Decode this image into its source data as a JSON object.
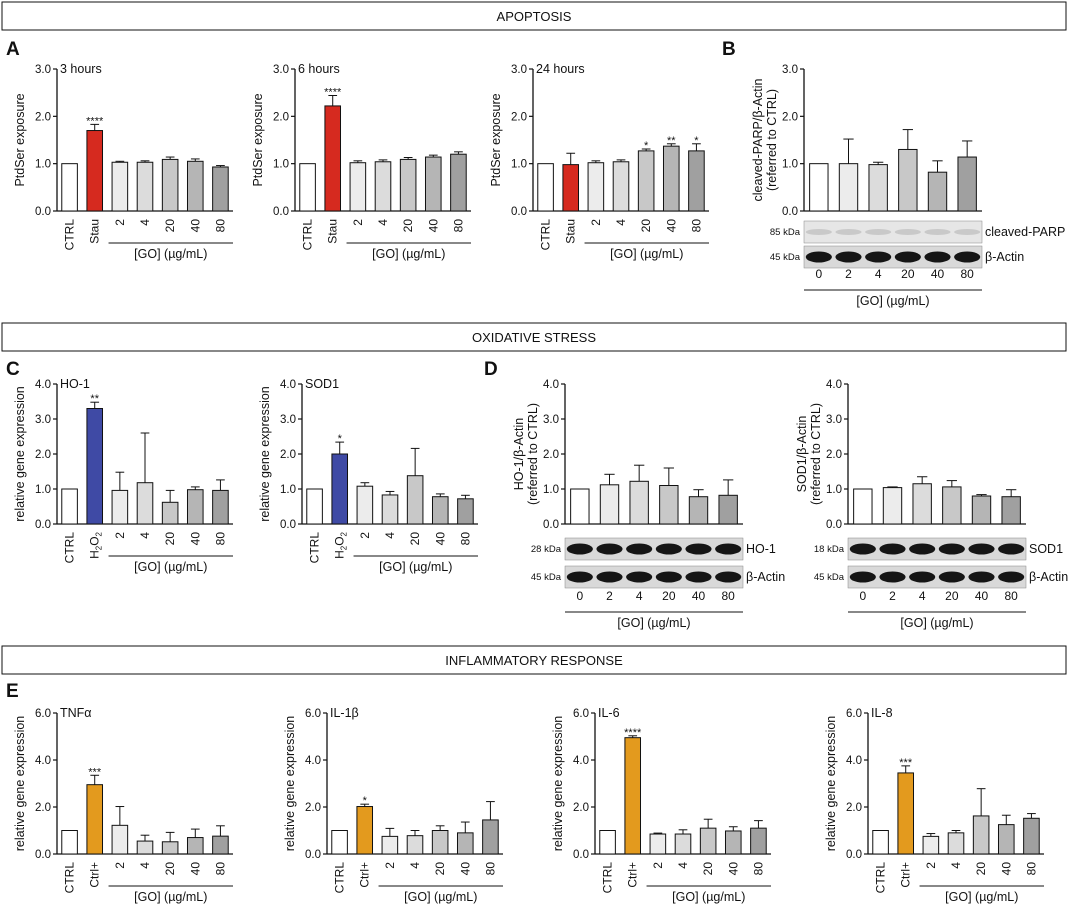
{
  "sections": {
    "apoptosis": "APOPTOSIS",
    "oxidative": "OXIDATIVE STRESS",
    "inflammatory": "INFLAMMATORY RESPONSE"
  },
  "panel_letters": {
    "A": "A",
    "B": "B",
    "C": "C",
    "D": "D",
    "E": "E"
  },
  "group_label": "[GO] (µg/mL)",
  "colors": {
    "red": "#d62a1f",
    "blue": "#3f4aa5",
    "orange": "#e39a1e",
    "white": "#ffffff",
    "g1": "#ececec",
    "g2": "#dcdcdc",
    "g3": "#c8c8c8",
    "g4": "#b5b5b5",
    "g5": "#a0a0a0"
  },
  "chart_data": [
    {
      "id": "A1",
      "type": "bar",
      "title": "3 hours",
      "ylabel": "PtdSer exposure",
      "ylim": [
        0,
        3
      ],
      "ticks": [
        "0.0",
        "1.0",
        "2.0",
        "3.0"
      ],
      "categories": [
        "CTRL",
        "Stau",
        "2",
        "4",
        "20",
        "40",
        "80"
      ],
      "values": [
        1.0,
        1.7,
        1.03,
        1.03,
        1.09,
        1.05,
        0.93
      ],
      "errors": [
        0,
        0.13,
        0.02,
        0.03,
        0.05,
        0.05,
        0.03
      ],
      "stars": [
        "",
        "****",
        "",
        "",
        "",
        "",
        ""
      ]
    },
    {
      "id": "A2",
      "type": "bar",
      "title": "6 hours",
      "ylabel": "PtdSer exposure",
      "ylim": [
        0,
        3
      ],
      "ticks": [
        "0.0",
        "1.0",
        "2.0",
        "3.0"
      ],
      "categories": [
        "CTRL",
        "Stau",
        "2",
        "4",
        "20",
        "40",
        "80"
      ],
      "values": [
        1.0,
        2.22,
        1.02,
        1.04,
        1.09,
        1.14,
        1.2
      ],
      "errors": [
        0,
        0.22,
        0.04,
        0.04,
        0.04,
        0.04,
        0.05
      ],
      "stars": [
        "",
        "****",
        "",
        "",
        "",
        "",
        ""
      ]
    },
    {
      "id": "A3",
      "type": "bar",
      "title": "24 hours",
      "ylabel": "PtdSer exposure",
      "ylim": [
        0,
        3
      ],
      "ticks": [
        "0.0",
        "1.0",
        "2.0",
        "3.0"
      ],
      "categories": [
        "CTRL",
        "Stau",
        "2",
        "4",
        "20",
        "40",
        "80"
      ],
      "values": [
        1.0,
        0.98,
        1.02,
        1.04,
        1.27,
        1.37,
        1.27
      ],
      "errors": [
        0,
        0.24,
        0.04,
        0.04,
        0.04,
        0.05,
        0.15
      ],
      "stars": [
        "",
        "",
        "",
        "",
        "*",
        "**",
        "*"
      ]
    },
    {
      "id": "B",
      "type": "bar",
      "title": "",
      "ylabel": "cleaved-PARP/β-Actin",
      "ylabel2": "(referred to CTRL)",
      "ylim": [
        0,
        3
      ],
      "ticks": [
        "0.0",
        "1.0",
        "2.0",
        "3.0"
      ],
      "categories": [
        "0",
        "2",
        "4",
        "20",
        "40",
        "80"
      ],
      "values": [
        1.0,
        1.0,
        0.98,
        1.3,
        0.82,
        1.14
      ],
      "errors": [
        0,
        0.52,
        0.05,
        0.42,
        0.24,
        0.34
      ],
      "stars": [
        "",
        "",
        "",
        "",
        "",
        ""
      ]
    },
    {
      "id": "C1",
      "type": "bar",
      "title": "HO-1",
      "ylabel": "relative gene expression",
      "ylim": [
        0,
        4
      ],
      "ticks": [
        "0.0",
        "1.0",
        "2.0",
        "3.0",
        "4.0"
      ],
      "categories": [
        "CTRL",
        "H2O2",
        "2",
        "4",
        "20",
        "40",
        "80"
      ],
      "values": [
        1.0,
        3.3,
        0.96,
        1.18,
        0.62,
        0.98,
        0.96
      ],
      "errors": [
        0,
        0.18,
        0.52,
        1.42,
        0.34,
        0.08,
        0.3
      ],
      "stars": [
        "",
        "**",
        "",
        "",
        "",
        "",
        ""
      ]
    },
    {
      "id": "C2",
      "type": "bar",
      "title": "SOD1",
      "ylabel": "relative gene expression",
      "ylim": [
        0,
        4
      ],
      "ticks": [
        "0.0",
        "1.0",
        "2.0",
        "3.0",
        "4.0"
      ],
      "categories": [
        "CTRL",
        "H2O2",
        "2",
        "4",
        "20",
        "40",
        "80"
      ],
      "values": [
        1.0,
        2.0,
        1.08,
        0.83,
        1.38,
        0.78,
        0.72
      ],
      "errors": [
        0,
        0.34,
        0.1,
        0.1,
        0.78,
        0.08,
        0.1
      ],
      "stars": [
        "",
        "*",
        "",
        "",
        "",
        "",
        ""
      ]
    },
    {
      "id": "D1",
      "type": "bar",
      "title": "",
      "ylabel": "HO-1/β-Actin",
      "ylabel2": "(referred to CTRL)",
      "ylim": [
        0,
        4
      ],
      "ticks": [
        "0.0",
        "1.0",
        "2.0",
        "3.0",
        "4.0"
      ],
      "categories": [
        "0",
        "2",
        "4",
        "20",
        "40",
        "80"
      ],
      "values": [
        1.0,
        1.12,
        1.22,
        1.1,
        0.78,
        0.82
      ],
      "errors": [
        0,
        0.3,
        0.46,
        0.5,
        0.2,
        0.44
      ],
      "stars": [
        "",
        "",
        "",
        "",
        "",
        ""
      ]
    },
    {
      "id": "D2",
      "type": "bar",
      "title": "",
      "ylabel": "SOD1/β-Actin",
      "ylabel2": "(referred to CTRL)",
      "ylim": [
        0,
        4
      ],
      "ticks": [
        "0.0",
        "1.0",
        "2.0",
        "3.0",
        "4.0"
      ],
      "categories": [
        "0",
        "2",
        "4",
        "20",
        "40",
        "80"
      ],
      "values": [
        1.0,
        1.04,
        1.15,
        1.06,
        0.8,
        0.78
      ],
      "errors": [
        0,
        0.02,
        0.2,
        0.18,
        0.04,
        0.2
      ],
      "stars": [
        "",
        "",
        "",
        "",
        "",
        ""
      ]
    },
    {
      "id": "E1",
      "type": "bar",
      "title": "TNFα",
      "ylabel": "relative gene expression",
      "ylim": [
        0,
        6
      ],
      "ticks": [
        "0.0",
        "2.0",
        "4.0",
        "6.0"
      ],
      "categories": [
        "CTRL",
        "Ctrl+",
        "2",
        "4",
        "20",
        "40",
        "80"
      ],
      "values": [
        1.0,
        2.95,
        1.22,
        0.55,
        0.52,
        0.7,
        0.76
      ],
      "errors": [
        0,
        0.4,
        0.8,
        0.25,
        0.4,
        0.36,
        0.44
      ],
      "stars": [
        "",
        "***",
        "",
        "",
        "",
        "",
        ""
      ]
    },
    {
      "id": "E2",
      "type": "bar",
      "title": "IL-1β",
      "ylabel": "relative gene expression",
      "ylim": [
        0,
        6
      ],
      "ticks": [
        "0.0",
        "2.0",
        "4.0",
        "6.0"
      ],
      "categories": [
        "CTRL",
        "Ctrl+",
        "2",
        "4",
        "20",
        "40",
        "80"
      ],
      "values": [
        1.0,
        2.02,
        0.75,
        0.78,
        1.0,
        0.9,
        1.45
      ],
      "errors": [
        0,
        0.1,
        0.34,
        0.22,
        0.2,
        0.46,
        0.78
      ],
      "stars": [
        "",
        "*",
        "",
        "",
        "",
        "",
        ""
      ]
    },
    {
      "id": "E3",
      "type": "bar",
      "title": "IL-6",
      "ylabel": "relative gene expression",
      "ylim": [
        0,
        6
      ],
      "ticks": [
        "0.0",
        "2.0",
        "4.0",
        "6.0"
      ],
      "categories": [
        "CTRL",
        "Ctrl+",
        "2",
        "4",
        "20",
        "40",
        "80"
      ],
      "values": [
        1.0,
        4.95,
        0.85,
        0.85,
        1.1,
        0.98,
        1.1
      ],
      "errors": [
        0,
        0.08,
        0.04,
        0.18,
        0.38,
        0.18,
        0.32
      ],
      "stars": [
        "",
        "****",
        "",
        "",
        "",
        "",
        ""
      ]
    },
    {
      "id": "E4",
      "type": "bar",
      "title": "IL-8",
      "ylabel": "relative gene expression",
      "ylim": [
        0,
        6
      ],
      "ticks": [
        "0.0",
        "2.0",
        "4.0",
        "6.0"
      ],
      "categories": [
        "CTRL",
        "Ctrl+",
        "2",
        "4",
        "20",
        "40",
        "80"
      ],
      "values": [
        1.0,
        3.45,
        0.75,
        0.9,
        1.62,
        1.25,
        1.52
      ],
      "errors": [
        0,
        0.3,
        0.12,
        0.1,
        1.16,
        0.4,
        0.2
      ],
      "stars": [
        "",
        "***",
        "",
        "",
        "",
        "",
        ""
      ]
    }
  ],
  "blots": {
    "B": {
      "top_kda": "85 kDa",
      "top_name": "cleaved-PARP",
      "bottom_kda": "45 kDa",
      "bottom_name": "β-Actin"
    },
    "D1": {
      "top_kda": "28 kDa",
      "top_name": "HO-1",
      "bottom_kda": "45 kDa",
      "bottom_name": "β-Actin"
    },
    "D2": {
      "top_kda": "18 kDa",
      "top_name": "SOD1",
      "bottom_kda": "45 kDa",
      "bottom_name": "β-Actin"
    }
  }
}
